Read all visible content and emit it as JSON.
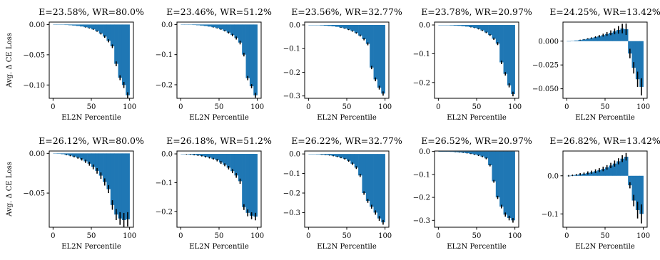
{
  "colors": {
    "bar": "#1f77b4",
    "error": "#000000"
  },
  "y_axis_label": "Avg. Δ CE Loss",
  "x_axis_label": "EL2N Percentile",
  "chart_data": [
    {
      "type": "bar",
      "title": "E=23.58%, WR=80.0%",
      "xlabel": "EL2N Percentile",
      "ylabel": "Avg. Δ CE Loss",
      "xlim": [
        -5,
        105
      ],
      "ylim": [
        -0.122,
        0.004
      ],
      "xticks": [
        0,
        50,
        100
      ],
      "yticks": [
        0.0,
        -0.05,
        -0.1
      ],
      "ytick_labels": [
        "0.00",
        "−0.05",
        "−0.10"
      ],
      "x": [
        0,
        5,
        10,
        15,
        20,
        25,
        30,
        35,
        40,
        45,
        50,
        55,
        60,
        65,
        70,
        75,
        80,
        85,
        90,
        95
      ],
      "values": [
        0,
        -0.0002,
        -0.0005,
        -0.0008,
        -0.0012,
        -0.0017,
        -0.0024,
        -0.0033,
        -0.0045,
        -0.006,
        -0.008,
        -0.011,
        -0.015,
        -0.02,
        -0.027,
        -0.036,
        -0.065,
        -0.088,
        -0.1,
        -0.117
      ],
      "errors": [
        0,
        0,
        0,
        0,
        0,
        0,
        0,
        0,
        0.0005,
        0.0006,
        0.0008,
        0.001,
        0.0015,
        0.002,
        0.0025,
        0.003,
        0.004,
        0.004,
        0.005,
        0.005
      ]
    },
    {
      "type": "bar",
      "title": "E=23.46%, WR=51.2%",
      "xlabel": "EL2N Percentile",
      "xlim": [
        -5,
        105
      ],
      "ylim": [
        -0.245,
        0.008
      ],
      "xticks": [
        0,
        50,
        100
      ],
      "yticks": [
        0.0,
        -0.1,
        -0.2
      ],
      "ytick_labels": [
        "0.0",
        "−0.1",
        "−0.2"
      ],
      "x": [
        0,
        5,
        10,
        15,
        20,
        25,
        30,
        35,
        40,
        45,
        50,
        55,
        60,
        65,
        70,
        75,
        80,
        85,
        90,
        95
      ],
      "values": [
        0,
        -0.0005,
        -0.001,
        -0.0017,
        -0.0025,
        -0.0035,
        -0.005,
        -0.007,
        -0.009,
        -0.012,
        -0.016,
        -0.021,
        -0.027,
        -0.035,
        -0.045,
        -0.06,
        -0.1,
        -0.178,
        -0.205,
        -0.235
      ],
      "errors": [
        0,
        0,
        0,
        0,
        0,
        0,
        0,
        0,
        0.001,
        0.001,
        0.0015,
        0.002,
        0.003,
        0.004,
        0.005,
        0.006,
        0.006,
        0.007,
        0.007,
        0.008
      ]
    },
    {
      "type": "bar",
      "title": "E=23.56%, WR=32.77%",
      "xlabel": "EL2N Percentile",
      "xlim": [
        -5,
        105
      ],
      "ylim": [
        -0.31,
        0.012
      ],
      "xticks": [
        0,
        50,
        100
      ],
      "yticks": [
        0.0,
        -0.1,
        -0.2,
        -0.3
      ],
      "ytick_labels": [
        "0.0",
        "−0.1",
        "−0.2",
        "−0.3"
      ],
      "x": [
        0,
        5,
        10,
        15,
        20,
        25,
        30,
        35,
        40,
        45,
        50,
        55,
        60,
        65,
        70,
        75,
        80,
        85,
        90,
        95
      ],
      "values": [
        0,
        -0.0005,
        -0.0012,
        -0.002,
        -0.003,
        -0.0045,
        -0.006,
        -0.008,
        -0.011,
        -0.015,
        -0.02,
        -0.026,
        -0.034,
        -0.045,
        -0.06,
        -0.08,
        -0.18,
        -0.23,
        -0.265,
        -0.29
      ],
      "errors": [
        0,
        0,
        0,
        0,
        0,
        0,
        0,
        0,
        0.001,
        0.0015,
        0.002,
        0.0025,
        0.003,
        0.004,
        0.005,
        0.006,
        0.007,
        0.008,
        0.008,
        0.009
      ]
    },
    {
      "type": "bar",
      "title": "E=23.78%, WR=20.97%",
      "xlabel": "EL2N Percentile",
      "xlim": [
        -5,
        105
      ],
      "ylim": [
        -0.255,
        0.01
      ],
      "xticks": [
        0,
        50,
        100
      ],
      "yticks": [
        0.0,
        -0.1,
        -0.2
      ],
      "ytick_labels": [
        "0.0",
        "−0.1",
        "−0.2"
      ],
      "x": [
        0,
        5,
        10,
        15,
        20,
        25,
        30,
        35,
        40,
        45,
        50,
        55,
        60,
        65,
        70,
        75,
        80,
        85,
        90,
        95
      ],
      "values": [
        0,
        -0.0005,
        -0.001,
        -0.0015,
        -0.0022,
        -0.003,
        -0.0042,
        -0.0057,
        -0.0075,
        -0.01,
        -0.014,
        -0.019,
        -0.026,
        -0.035,
        -0.048,
        -0.065,
        -0.13,
        -0.17,
        -0.21,
        -0.24
      ],
      "errors": [
        0,
        0,
        0,
        0,
        0,
        0,
        0,
        0,
        0.001,
        0.001,
        0.0015,
        0.002,
        0.0025,
        0.003,
        0.004,
        0.005,
        0.006,
        0.006,
        0.007,
        0.008
      ]
    },
    {
      "type": "bar",
      "title": "E=24.25%, WR=13.42%",
      "xlabel": "EL2N Percentile",
      "xlim": [
        -5,
        105
      ],
      "ylim": [
        -0.06,
        0.02
      ],
      "xticks": [
        0,
        50,
        100
      ],
      "yticks": [
        0.0,
        -0.025,
        -0.05
      ],
      "ytick_labels": [
        "0.000",
        "−0.025",
        "−0.050"
      ],
      "x": [
        0,
        5,
        10,
        15,
        20,
        25,
        30,
        35,
        40,
        45,
        50,
        55,
        60,
        65,
        70,
        75,
        80,
        85,
        90,
        95
      ],
      "values": [
        0,
        0.0003,
        0.0007,
        0.0012,
        0.0018,
        0.0025,
        0.0033,
        0.0042,
        0.0052,
        0.0063,
        0.0075,
        0.0088,
        0.0102,
        0.0118,
        0.0132,
        0.0125,
        -0.013,
        -0.028,
        -0.04,
        -0.048
      ],
      "errors": [
        0,
        0,
        0,
        0.0003,
        0.0004,
        0.0005,
        0.0007,
        0.0009,
        0.0012,
        0.0015,
        0.002,
        0.0025,
        0.003,
        0.004,
        0.005,
        0.006,
        0.005,
        0.006,
        0.008,
        0.009
      ]
    },
    {
      "type": "bar",
      "title": "E=26.12%, WR=80.0%",
      "xlabel": "EL2N Percentile",
      "ylabel": "Avg. Δ CE Loss",
      "xlim": [
        -5,
        105
      ],
      "ylim": [
        -0.093,
        0.003
      ],
      "xticks": [
        0,
        50,
        100
      ],
      "yticks": [
        0.0,
        -0.05
      ],
      "ytick_labels": [
        "0.00",
        "−0.05"
      ],
      "x": [
        0,
        5,
        10,
        15,
        20,
        25,
        30,
        35,
        40,
        45,
        50,
        55,
        60,
        65,
        70,
        75,
        80,
        85,
        90,
        95
      ],
      "values": [
        0,
        -0.0005,
        -0.001,
        -0.0018,
        -0.0028,
        -0.004,
        -0.0055,
        -0.0075,
        -0.01,
        -0.013,
        -0.017,
        -0.022,
        -0.028,
        -0.036,
        -0.045,
        -0.065,
        -0.077,
        -0.082,
        -0.084,
        -0.083
      ],
      "errors": [
        0,
        0,
        0,
        0.0005,
        0.0008,
        0.001,
        0.0012,
        0.0015,
        0.002,
        0.0025,
        0.003,
        0.0035,
        0.004,
        0.0045,
        0.005,
        0.006,
        0.007,
        0.008,
        0.009,
        0.009
      ]
    },
    {
      "type": "bar",
      "title": "E=26.18%, WR=51.2%",
      "xlabel": "EL2N Percentile",
      "xlim": [
        -5,
        105
      ],
      "ylim": [
        -0.255,
        0.01
      ],
      "xticks": [
        0,
        50,
        100
      ],
      "yticks": [
        0.0,
        -0.1,
        -0.2
      ],
      "ytick_labels": [
        "0.0",
        "−0.1",
        "−0.2"
      ],
      "x": [
        0,
        5,
        10,
        15,
        20,
        25,
        30,
        35,
        40,
        45,
        50,
        55,
        60,
        65,
        70,
        75,
        80,
        85,
        90,
        95
      ],
      "values": [
        0,
        -0.001,
        -0.002,
        -0.0035,
        -0.005,
        -0.007,
        -0.01,
        -0.013,
        -0.017,
        -0.022,
        -0.03,
        -0.038,
        -0.048,
        -0.06,
        -0.075,
        -0.095,
        -0.185,
        -0.205,
        -0.215,
        -0.218
      ],
      "errors": [
        0,
        0.001,
        0.001,
        0.0015,
        0.002,
        0.002,
        0.0025,
        0.003,
        0.003,
        0.004,
        0.005,
        0.005,
        0.006,
        0.007,
        0.008,
        0.009,
        0.01,
        0.012,
        0.012,
        0.013
      ]
    },
    {
      "type": "bar",
      "title": "E=26.22%, WR=32.77%",
      "xlabel": "EL2N Percentile",
      "xlim": [
        -5,
        105
      ],
      "ylim": [
        -0.375,
        0.015
      ],
      "xticks": [
        0,
        50,
        100
      ],
      "yticks": [
        0.0,
        -0.1,
        -0.2,
        -0.3
      ],
      "ytick_labels": [
        "0.0",
        "−0.1",
        "−0.2",
        "−0.3"
      ],
      "x": [
        0,
        5,
        10,
        15,
        20,
        25,
        30,
        35,
        40,
        45,
        50,
        55,
        60,
        65,
        70,
        75,
        80,
        85,
        90,
        95
      ],
      "values": [
        0,
        -0.001,
        -0.002,
        -0.0035,
        -0.005,
        -0.007,
        -0.01,
        -0.014,
        -0.019,
        -0.025,
        -0.035,
        -0.05,
        -0.07,
        -0.11,
        -0.2,
        -0.24,
        -0.27,
        -0.3,
        -0.33,
        -0.35
      ],
      "errors": [
        0,
        0,
        0,
        0.001,
        0.001,
        0.0015,
        0.002,
        0.0025,
        0.003,
        0.004,
        0.005,
        0.006,
        0.007,
        0.008,
        0.009,
        0.01,
        0.01,
        0.011,
        0.012,
        0.012
      ]
    },
    {
      "type": "bar",
      "title": "E=26.52%, WR=20.97%",
      "xlabel": "EL2N Percentile",
      "xlim": [
        -5,
        105
      ],
      "ylim": [
        -0.33,
        0.002
      ],
      "xticks": [
        0,
        50,
        100
      ],
      "yticks": [
        0.0,
        -0.1,
        -0.2,
        -0.3
      ],
      "ytick_labels": [
        "0.0",
        "−0.1",
        "−0.2",
        "−0.3"
      ],
      "x": [
        0,
        5,
        10,
        15,
        20,
        25,
        30,
        35,
        40,
        45,
        50,
        55,
        60,
        65,
        70,
        75,
        80,
        85,
        90,
        95
      ],
      "values": [
        0,
        -0.0005,
        -0.001,
        -0.0018,
        -0.0028,
        -0.004,
        -0.0055,
        -0.0075,
        -0.01,
        -0.013,
        -0.017,
        -0.022,
        -0.03,
        -0.06,
        -0.13,
        -0.2,
        -0.24,
        -0.275,
        -0.29,
        -0.3
      ],
      "errors": [
        0,
        0,
        0,
        0,
        0.0005,
        0.0008,
        0.001,
        0.0012,
        0.0015,
        0.002,
        0.0025,
        0.003,
        0.004,
        0.005,
        0.006,
        0.007,
        0.008,
        0.009,
        0.01,
        0.01
      ]
    },
    {
      "type": "bar",
      "title": "E=26.82%, WR=13.42%",
      "xlabel": "EL2N Percentile",
      "xlim": [
        -5,
        105
      ],
      "ylim": [
        -0.135,
        0.065
      ],
      "xticks": [
        0,
        50,
        100
      ],
      "yticks": [
        0.0,
        -0.1
      ],
      "ytick_labels": [
        "0.0",
        "−0.1"
      ],
      "x": [
        0,
        5,
        10,
        15,
        20,
        25,
        30,
        35,
        40,
        45,
        50,
        55,
        60,
        65,
        70,
        75,
        80,
        85,
        90,
        95
      ],
      "values": [
        0,
        0.0012,
        0.0025,
        0.004,
        0.0055,
        0.0075,
        0.0095,
        0.012,
        0.015,
        0.018,
        0.022,
        0.027,
        0.032,
        0.038,
        0.045,
        0.05,
        -0.025,
        -0.065,
        -0.09,
        -0.1
      ],
      "errors": [
        0.002,
        0.002,
        0.002,
        0.003,
        0.003,
        0.004,
        0.004,
        0.005,
        0.005,
        0.006,
        0.006,
        0.007,
        0.008,
        0.008,
        0.009,
        0.01,
        0.008,
        0.015,
        0.022,
        0.025
      ]
    }
  ]
}
